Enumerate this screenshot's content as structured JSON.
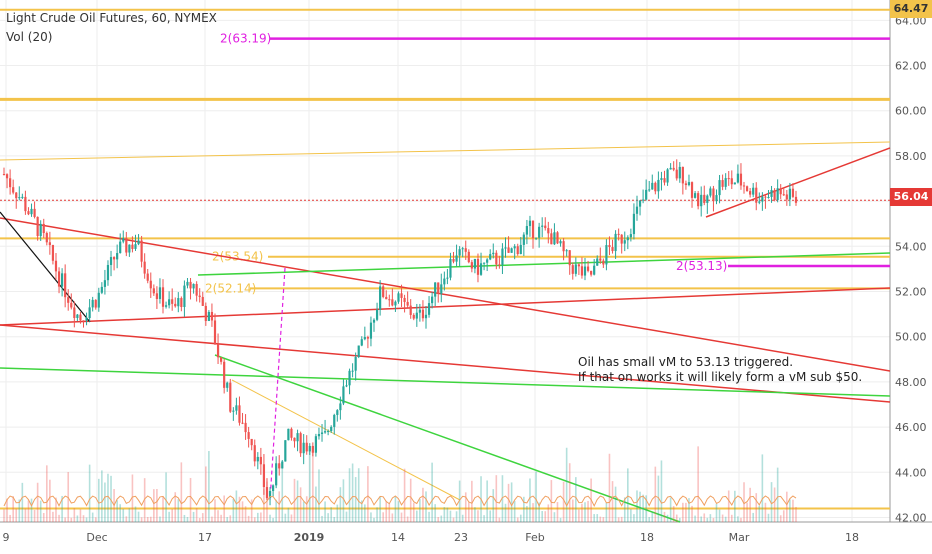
{
  "header": {
    "title": "Light Crude Oil Futures, 60, NYMEX",
    "indicator": "Vol (20)"
  },
  "colors": {
    "candle_up": "#26a69a",
    "candle_down": "#ef5350",
    "orange_line": "#f3c34a",
    "magenta": "#e020e0",
    "red_line": "#e53935",
    "green_line": "#3ed43e",
    "black_line": "#111111",
    "last_price_bg": "#e53935",
    "top_price_bg": "#f3c34a"
  },
  "annotation": {
    "line1": "Oil has small vM to 53.13 triggered.",
    "line2": "If that on works it will likely form a vM sub $50."
  },
  "level_labels": [
    {
      "text": "2(63.19)",
      "price": 63.19,
      "color": "#e020e0"
    },
    {
      "text": "2(53.54)",
      "price": 53.54,
      "color": "#f3c34a"
    },
    {
      "text": "2(52.14)",
      "price": 52.14,
      "color": "#f3c34a"
    },
    {
      "text": "2(53.13)",
      "price": 53.13,
      "color": "#e020e0"
    }
  ],
  "price_tags": {
    "top": "64.47",
    "last": "56.04"
  },
  "chart_data": {
    "type": "candlestick",
    "title": "Light Crude Oil Futures, 60, NYMEX",
    "y_axis": {
      "position": "right",
      "min": 41.8,
      "max": 64.9,
      "ticks": [
        42.0,
        44.0,
        46.0,
        48.0,
        50.0,
        52.0,
        54.0,
        56.0,
        58.0,
        60.0,
        62.0,
        64.0
      ]
    },
    "x_ticks": [
      "9",
      "Dec",
      "17",
      "2019",
      "14",
      "23",
      "Feb",
      "18",
      "Mar",
      "18"
    ],
    "price_path": [
      {
        "t": "9",
        "v": 57.2
      },
      {
        "t": "9+",
        "v": 56.0
      },
      {
        "t": "19Nov",
        "v": 54.5
      },
      {
        "t": "21Nov",
        "v": 52.5
      },
      {
        "t": "23Nov",
        "v": 50.8
      },
      {
        "t": "27Nov",
        "v": 51.8
      },
      {
        "t": "Dec",
        "v": 53.8
      },
      {
        "t": "4Dec",
        "v": 54.2
      },
      {
        "t": "7Dec",
        "v": 52.0
      },
      {
        "t": "10Dec",
        "v": 51.2
      },
      {
        "t": "13Dec",
        "v": 52.4
      },
      {
        "t": "17",
        "v": 50.5
      },
      {
        "t": "19Dec",
        "v": 47.0
      },
      {
        "t": "21Dec",
        "v": 45.8
      },
      {
        "t": "24Dec",
        "v": 42.8
      },
      {
        "t": "26Dec",
        "v": 45.5
      },
      {
        "t": "28Dec",
        "v": 45.2
      },
      {
        "t": "2019",
        "v": 45.5
      },
      {
        "t": "3Jan",
        "v": 47.8
      },
      {
        "t": "7Jan",
        "v": 49.5
      },
      {
        "t": "9Jan",
        "v": 52.0
      },
      {
        "t": "11Jan",
        "v": 51.5
      },
      {
        "t": "14",
        "v": 50.8
      },
      {
        "t": "16Jan",
        "v": 52.2
      },
      {
        "t": "18Jan",
        "v": 53.8
      },
      {
        "t": "23",
        "v": 53.0
      },
      {
        "t": "25Jan",
        "v": 53.4
      },
      {
        "t": "29Jan",
        "v": 53.8
      },
      {
        "t": "31Jan",
        "v": 54.8
      },
      {
        "t": "Feb",
        "v": 54.5
      },
      {
        "t": "6Feb",
        "v": 53.2
      },
      {
        "t": "8Feb",
        "v": 52.6
      },
      {
        "t": "12Feb",
        "v": 53.8
      },
      {
        "t": "14Feb",
        "v": 54.6
      },
      {
        "t": "18",
        "v": 56.2
      },
      {
        "t": "20Feb",
        "v": 57.1
      },
      {
        "t": "22Feb",
        "v": 57.2
      },
      {
        "t": "25Feb",
        "v": 55.8
      },
      {
        "t": "27Feb",
        "v": 56.8
      },
      {
        "t": "Mar",
        "v": 56.9
      },
      {
        "t": "5Mar",
        "v": 56.2
      },
      {
        "t": "7Mar",
        "v": 56.4
      },
      {
        "t": "8Mar",
        "v": 56.04
      }
    ],
    "horizontal_levels": [
      64.47,
      63.19,
      60.5,
      54.35,
      53.54,
      53.13,
      52.14,
      42.4
    ],
    "last_price": 56.04
  }
}
